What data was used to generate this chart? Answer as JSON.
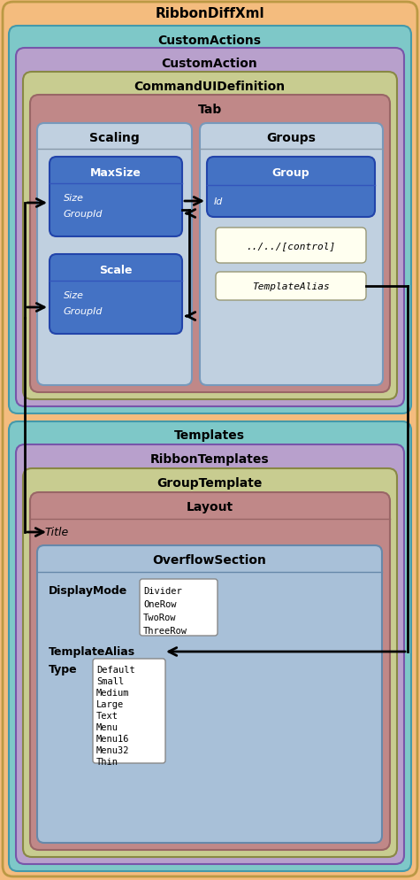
{
  "colors": {
    "orange": "#F4BC7E",
    "teal": "#7EC8C8",
    "purple": "#B8A0CC",
    "olive": "#C8CC90",
    "mauve": "#C08888",
    "scaling_bg": "#C0D0E0",
    "groups_bg": "#C0D0E0",
    "blue_box": "#4472C4",
    "cream": "#FFFFF0",
    "overflow_bg": "#A8C0D8",
    "white": "#FFFFFF"
  },
  "labels": {
    "root": "RibbonDiffXml",
    "ca_s": "CustomActions",
    "ca": "CustomAction",
    "cui": "CommandUIDefinition",
    "tab": "Tab",
    "scaling": "Scaling",
    "groups": "Groups",
    "maxsize": "MaxSize",
    "scale": "Scale",
    "group": "Group",
    "id": "Id",
    "control": "../../[control]",
    "templatealias": "TemplateAlias",
    "templates": "Templates",
    "ribbontemplates": "RibbonTemplates",
    "grouptemplate": "GroupTemplate",
    "layout": "Layout",
    "title": "Title",
    "overflow": "OverflowSection",
    "displaymode": "DisplayMode",
    "templatealias2": "TemplateAlias",
    "type": "Type",
    "size": "Size",
    "groupid": "GroupId",
    "divider_vals": [
      "Divider",
      "OneRow",
      "TwoRow",
      "ThreeRow"
    ],
    "type_vals": [
      "Default",
      "Small",
      "Medium",
      "Large",
      "Text",
      "Menu",
      "Menu16",
      "Menu32",
      "Thin"
    ]
  }
}
